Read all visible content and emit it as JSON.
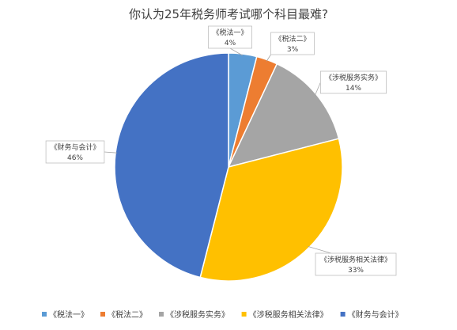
{
  "chart_data": {
    "type": "pie",
    "title": "你认为25年税务师考试哪个科目最难?",
    "labels": [
      "《税法一》",
      "《税法二》",
      "《涉税服务实务》",
      "《涉税服务相关法律》",
      "《财务与会计》"
    ],
    "values": [
      4,
      3,
      14,
      33,
      46
    ],
    "value_labels": [
      "4%",
      "3%",
      "14%",
      "33%",
      "46%"
    ],
    "colors": [
      "#5B9BD5",
      "#ED7D31",
      "#A5A5A5",
      "#FFC000",
      "#4472C4"
    ],
    "legend": {
      "position": "bottom",
      "entries": [
        "《税法一》",
        "《税法二》",
        "《涉税服务实务》",
        "《涉税服务相关法律》",
        "《财务与会计》"
      ]
    }
  }
}
